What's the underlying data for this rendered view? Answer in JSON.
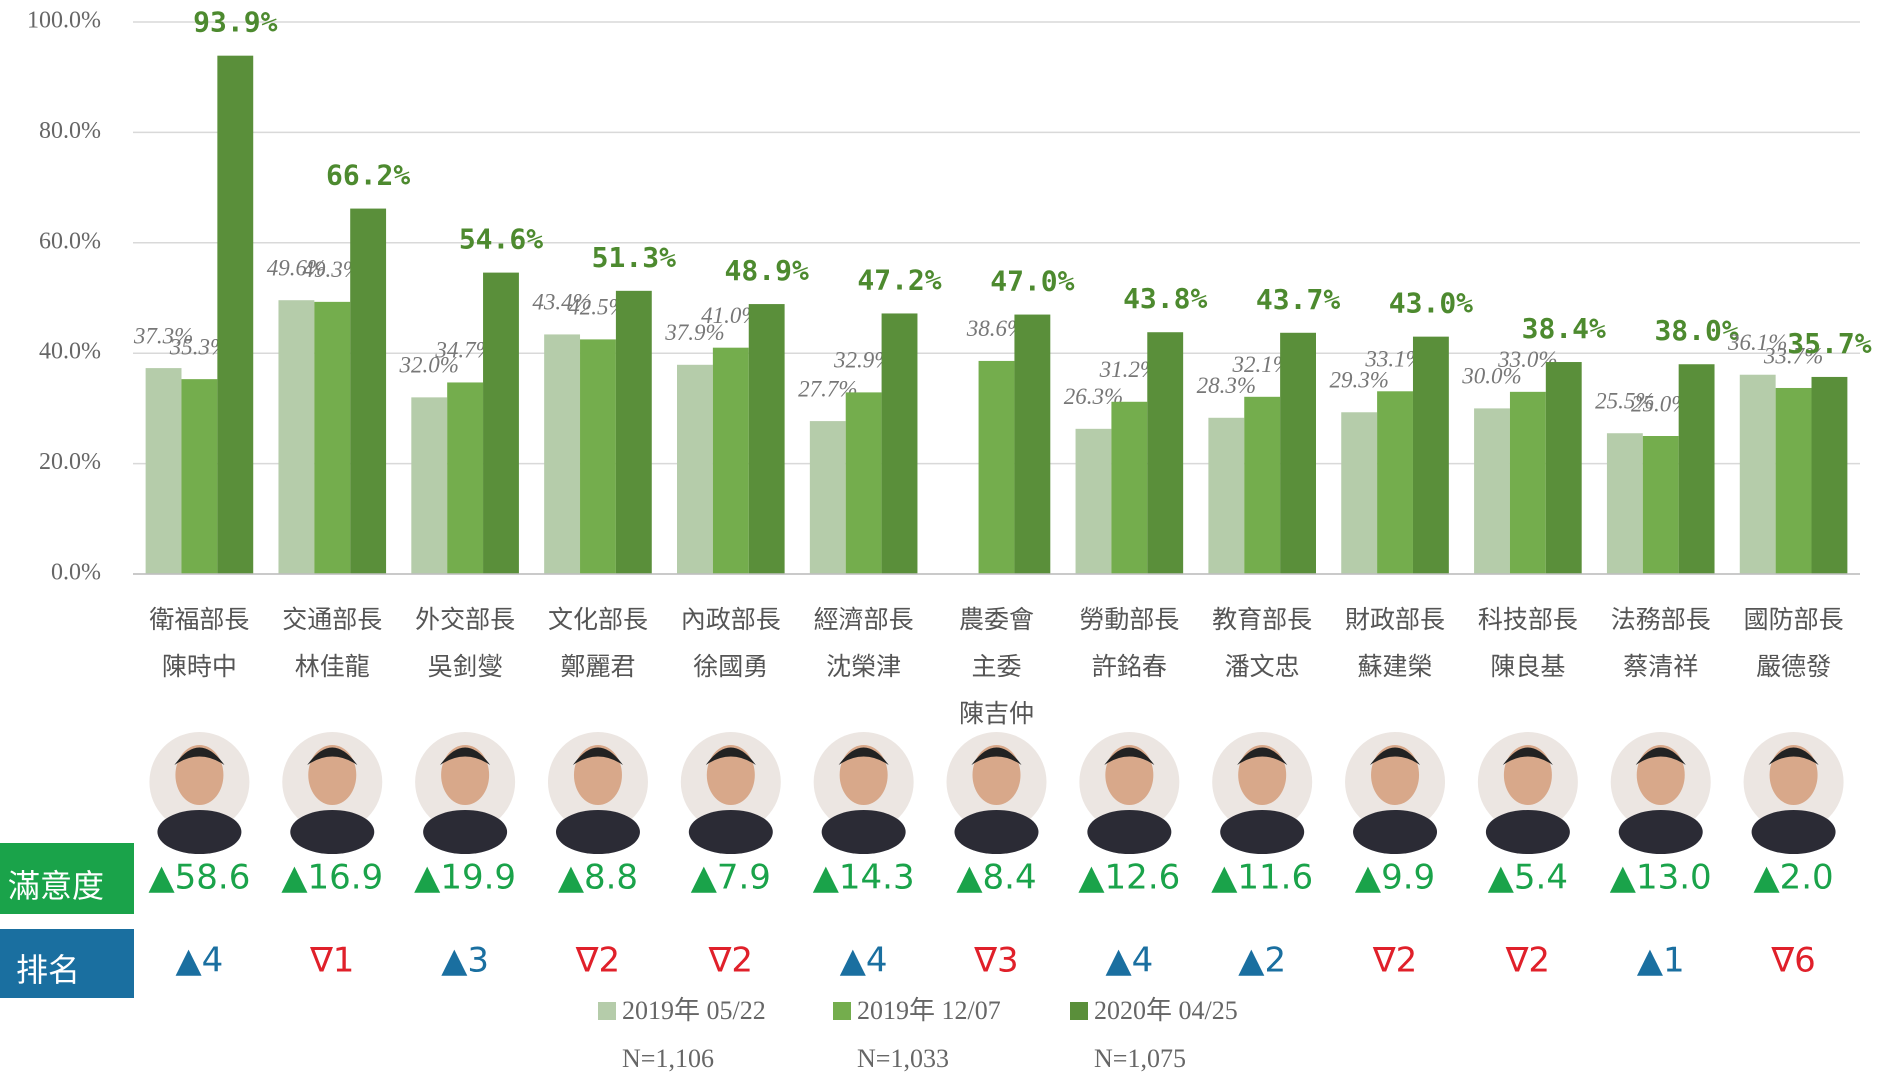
{
  "chart_data": {
    "type": "bar",
    "categories": [
      [
        "衛福部長",
        "陳時中"
      ],
      [
        "交通部長",
        "林佳龍"
      ],
      [
        "外交部長",
        "吳釗燮"
      ],
      [
        "文化部長",
        "鄭麗君"
      ],
      [
        "內政部長",
        "徐國勇"
      ],
      [
        "經濟部長",
        "沈榮津"
      ],
      [
        "農委會",
        "主委",
        "陳吉仲"
      ],
      [
        "勞動部長",
        "許銘春"
      ],
      [
        "教育部長",
        "潘文忠"
      ],
      [
        "財政部長",
        "蘇建榮"
      ],
      [
        "科技部長",
        "陳良基"
      ],
      [
        "法務部長",
        "蔡清祥"
      ],
      [
        "國防部長",
        "嚴德發"
      ]
    ],
    "series": [
      {
        "name": "2019年 05/22",
        "sample": "N=1,106",
        "color": "#b5ccaa",
        "values": [
          37.3,
          49.6,
          32.0,
          43.4,
          37.9,
          27.7,
          null,
          26.3,
          28.3,
          29.3,
          30.0,
          25.5,
          36.1
        ],
        "value_labels": [
          "37.3%",
          "49.6%",
          "32.0%",
          "43.4%",
          "37.9%",
          "27.7%",
          null,
          "26.3%",
          "28.3%",
          "29.3%",
          "30.0%",
          "25.5%",
          "36.1%"
        ]
      },
      {
        "name": "2019年 12/07",
        "sample": "N=1,033",
        "color": "#74ad4d",
        "values": [
          35.3,
          49.3,
          34.7,
          42.5,
          41.0,
          32.9,
          38.6,
          31.2,
          32.1,
          33.1,
          33.0,
          25.0,
          33.7
        ],
        "value_labels": [
          "35.3%",
          "49.3%",
          "34.7%",
          "42.5%",
          "41.0%",
          "32.9%",
          "38.6%",
          "31.2%",
          "32.1%",
          "33.1%",
          "33.0%",
          "25.0%",
          "33.7%"
        ]
      },
      {
        "name": "2020年 04/25",
        "sample": "N=1,075",
        "color": "#5a8f3a",
        "values": [
          93.9,
          66.2,
          54.6,
          51.3,
          48.9,
          47.2,
          47.0,
          43.8,
          43.7,
          43.0,
          38.4,
          38.0,
          35.7
        ],
        "value_labels": [
          "93.9%",
          "66.2%",
          "54.6%",
          "51.3%",
          "48.9%",
          "47.2%",
          "47.0%",
          "43.8%",
          "43.7%",
          "43.0%",
          "38.4%",
          "38.0%",
          "35.7%"
        ]
      }
    ],
    "ylim": [
      0,
      100
    ],
    "yticks": [
      {
        "value": 0,
        "label": "0.0%"
      },
      {
        "value": 20,
        "label": "20.0%"
      },
      {
        "value": 40,
        "label": "40.0%"
      },
      {
        "value": 60,
        "label": "60.0%"
      },
      {
        "value": 80,
        "label": "80.0%"
      },
      {
        "value": 100,
        "label": "100.0%"
      }
    ],
    "satisfaction": {
      "label": "滿意度",
      "color": "#1aa34a",
      "values": [
        "▲58.6",
        "▲16.9",
        "▲19.9",
        "▲8.8",
        "▲7.9",
        "▲14.3",
        "▲8.4",
        "▲12.6",
        "▲11.6",
        "▲9.9",
        "▲5.4",
        "▲13.0",
        "▲2.0"
      ]
    },
    "rank": {
      "label": "排名",
      "color": "#1a6fa0",
      "values": [
        "▲4",
        "∇1",
        "▲3",
        "∇2",
        "∇2",
        "▲4",
        "∇3",
        "▲4",
        "▲2",
        "∇2",
        "∇2",
        "▲1",
        "∇6"
      ]
    }
  }
}
